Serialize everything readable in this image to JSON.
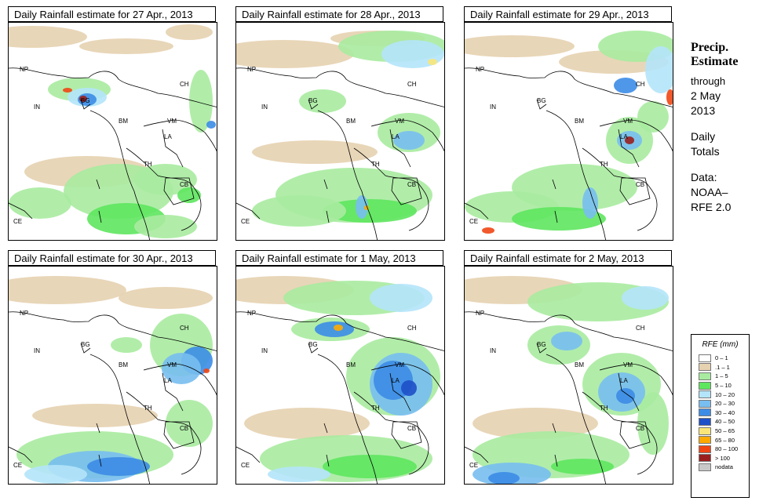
{
  "panels": [
    {
      "title": "Daily Rainfall estimate for  27 Apr., 2013",
      "pattern": "p27"
    },
    {
      "title": "Daily Rainfall estimate for  28 Apr., 2013",
      "pattern": "p28"
    },
    {
      "title": "Daily Rainfall estimate for  29 Apr., 2013",
      "pattern": "p29"
    },
    {
      "title": "Daily Rainfall estimate for  30 Apr., 2013",
      "pattern": "p30"
    },
    {
      "title": "Daily Rainfall estimate for  1 May, 2013",
      "pattern": "p1"
    },
    {
      "title": "Daily Rainfall estimate for  2 May, 2013",
      "pattern": "p2"
    }
  ],
  "map_labels": [
    "NP",
    "CH",
    "IN",
    "BG",
    "BM",
    "VM",
    "LA",
    "TH",
    "CB",
    "CE"
  ],
  "sidebar": {
    "heading_line1": "Precip.",
    "heading_line2": "Estimate",
    "line1": "through",
    "line2": "2 May",
    "line3": "2013",
    "line4": "Daily",
    "line5": "Totals",
    "line6": "Data:",
    "line7": "NOAA–",
    "line8": "RFE 2.0"
  },
  "legend": {
    "title": "RFE (mm)",
    "items": [
      {
        "label": "0 – 1",
        "color": "#ffffff"
      },
      {
        "label": ".1 – 1",
        "color": "#e6d2b0"
      },
      {
        "label": "1 – 5",
        "color": "#a8eba0"
      },
      {
        "label": "5 – 10",
        "color": "#5ee65e"
      },
      {
        "label": "10 – 20",
        "color": "#b4e4fa"
      },
      {
        "label": "20 – 30",
        "color": "#78bef0"
      },
      {
        "label": "30 – 40",
        "color": "#3c8ce6"
      },
      {
        "label": "40 – 50",
        "color": "#1e50c8"
      },
      {
        "label": "50 – 65",
        "color": "#fae678"
      },
      {
        "label": "65 – 80",
        "color": "#ffaa00"
      },
      {
        "label": "80 – 100",
        "color": "#f04614"
      },
      {
        "label": "> 100",
        "color": "#9a1e1e"
      },
      {
        "label": "nodata",
        "color": "#c8c8c8"
      }
    ]
  }
}
